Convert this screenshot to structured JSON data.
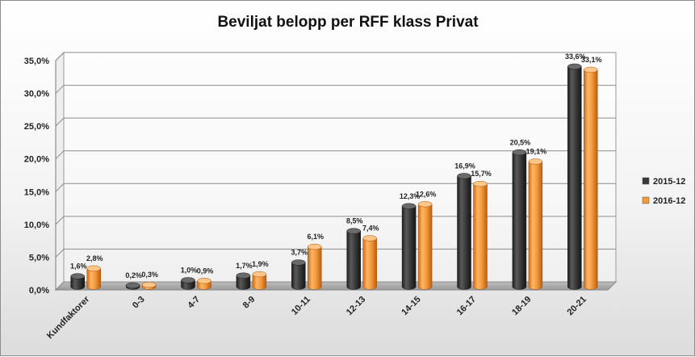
{
  "chart_data": {
    "type": "bar",
    "title": "Beviljat belopp per RFF klass Privat",
    "categories": [
      "Kundfaktorer",
      "0-3",
      "4-7",
      "8-9",
      "10-11",
      "12-13",
      "14-15",
      "16-17",
      "18-19",
      "20-21"
    ],
    "series": [
      {
        "name": "2015-12",
        "values": [
          1.6,
          0.2,
          1.0,
          1.7,
          3.7,
          8.5,
          12.3,
          16.9,
          20.5,
          33.6
        ],
        "labels": [
          "1,6%",
          "0,2%",
          "1,0%",
          "1,7%",
          "3,7%",
          "8,5%",
          "12,3%",
          "16,9%",
          "20,5%",
          "33,6%"
        ],
        "color": "#3a3a3a"
      },
      {
        "name": "2016-12",
        "values": [
          2.8,
          0.3,
          0.9,
          1.9,
          6.1,
          7.4,
          12.6,
          15.7,
          19.1,
          33.1
        ],
        "labels": [
          "2,8%",
          "0,3%",
          "0,9%",
          "1,9%",
          "6,1%",
          "7,4%",
          "12,6%",
          "15,7%",
          "19,1%",
          "33,1%"
        ],
        "color": "#f39a3c"
      }
    ],
    "ylim": [
      0,
      35
    ],
    "yticks": [
      0,
      5,
      10,
      15,
      20,
      25,
      30,
      35
    ],
    "ytick_labels": [
      "0,0%",
      "5,0%",
      "10,0%",
      "15,0%",
      "20,0%",
      "25,0%",
      "30,0%",
      "35,0%"
    ],
    "xlabel": "",
    "ylabel": "",
    "grid": true,
    "legend_position": "right",
    "style": "3d-cylinder"
  }
}
